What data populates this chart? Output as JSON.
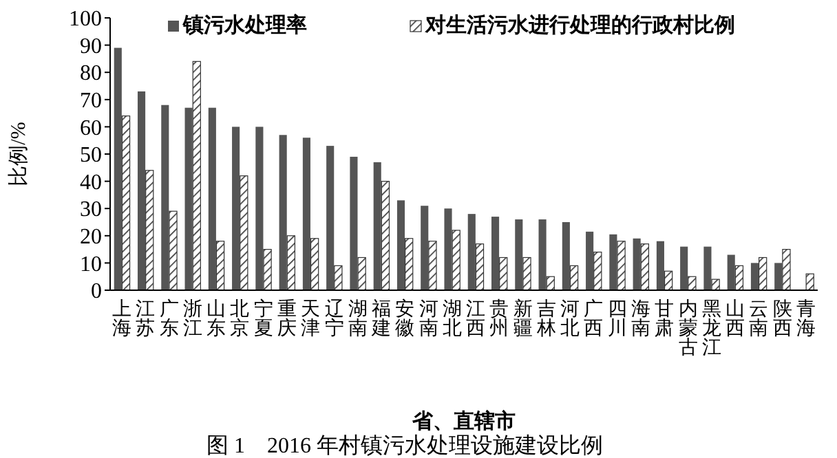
{
  "chart_data": {
    "type": "bar",
    "title": "图 1　2016 年村镇污水处理设施建设比例",
    "xlabel": "省、直辖市",
    "ylabel": "比例/%",
    "categories": [
      "上海",
      "江苏",
      "广东",
      "浙江",
      "山东",
      "北京",
      "宁夏",
      "重庆",
      "天津",
      "辽宁",
      "湖南",
      "福建",
      "安徽",
      "河南",
      "湖北",
      "江西",
      "贵州",
      "新疆",
      "吉林",
      "河北",
      "广西",
      "四川",
      "海南",
      "甘肃",
      "内蒙古",
      "黑龙江",
      "山西",
      "云南",
      "陕西",
      "青海"
    ],
    "series": [
      {
        "name": "镇污水处理率",
        "color": "#555555",
        "values": [
          89,
          73,
          68,
          67,
          67,
          60,
          60,
          57,
          56,
          53,
          49,
          47,
          33,
          31,
          30,
          28,
          27,
          26,
          26,
          25,
          21.5,
          20.5,
          19,
          18,
          16,
          16,
          13,
          10,
          10,
          0
        ]
      },
      {
        "name": "对生活污水进行处理的行政村比例",
        "color": "#333333",
        "values": [
          64,
          44,
          29,
          84,
          18,
          42,
          15,
          20,
          19,
          9,
          12,
          40,
          19,
          18,
          22,
          17,
          12,
          12,
          5,
          9,
          14,
          18,
          17,
          7,
          5,
          4,
          9,
          12,
          15,
          6
        ]
      }
    ],
    "ylim": [
      0,
      100
    ],
    "yticks": [
      0,
      10,
      20,
      30,
      40,
      50,
      60,
      70,
      80,
      90,
      100
    ],
    "grid": false,
    "legend": "top"
  }
}
